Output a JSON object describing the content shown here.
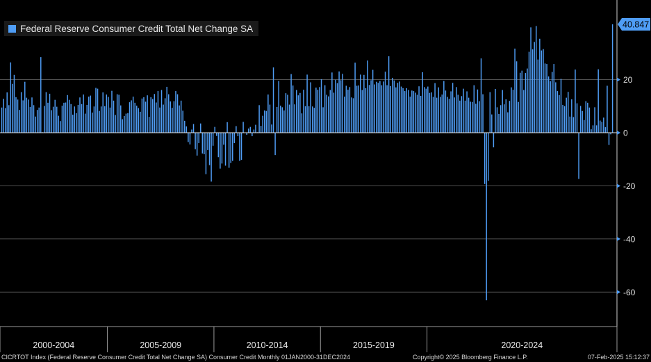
{
  "legend": {
    "label": "Federal Reserve Consumer Credit Total Net Change SA"
  },
  "footer": {
    "left": "CICRTOT Index (Federal Reserve Consumer Credit Total Net Change SA) Consumer Credit  Monthly 01JAN2000-31DEC2024",
    "middle": "Copyright© 2025 Bloomberg Finance L.P.",
    "right": "07-Feb-2025 15:12:37"
  },
  "colors": {
    "bar": "#4f9df5",
    "background": "#000000",
    "grid": "#6b6b6b",
    "last_label_bg": "#4f9df5"
  },
  "chart_data": {
    "type": "bar",
    "title": "Federal Reserve Consumer Credit Total Net Change SA",
    "ylim": [
      -73,
      50
    ],
    "yticks": [
      20,
      0,
      -20,
      -40,
      -60
    ],
    "grid": true,
    "legend_position": "top-left",
    "last_value_label": "40.847",
    "x_labels": [
      "2000-2004",
      "2005-2009",
      "2010-2014",
      "2015-2019",
      "2020-2024"
    ],
    "x_start": "2000-01",
    "frequency": "monthly",
    "values": [
      9.5,
      12.8,
      9.3,
      15.2,
      10.4,
      26.5,
      18.4,
      21.8,
      13.4,
      12.5,
      8.6,
      15.3,
      12.2,
      19.2,
      13.2,
      12.5,
      9.7,
      13.3,
      10.4,
      6.1,
      8.6,
      9.5,
      28.5,
      0.2,
      10.1,
      15.3,
      11.3,
      14.7,
      8.5,
      9.8,
      12.4,
      9.8,
      6.4,
      4.4,
      10.2,
      11.3,
      11.4,
      14.2,
      12.4,
      10.8,
      6.8,
      9.9,
      7.4,
      10.5,
      13.3,
      10.8,
      14.4,
      7.2,
      10.5,
      13.6,
      14.0,
      7.6,
      9.9,
      16.9,
      16.6,
      8.2,
      9.9,
      15.2,
      10.0,
      14.4,
      13.5,
      9.5,
      15.8,
      12.1,
      6.7,
      14.5,
      14.3,
      10.3,
      5.1,
      6.3,
      7.2,
      7.4,
      11.5,
      12.2,
      13.6,
      11.3,
      10.2,
      9.3,
      7.9,
      12.9,
      13.4,
      11.7,
      14.1,
      6.0,
      13.4,
      12.7,
      14.6,
      11.4,
      15.7,
      9.5,
      16.1,
      10.6,
      13.0,
      17.3,
      14.5,
      11.8,
      9.4,
      11.9,
      15.7,
      14.5,
      10.3,
      12.1,
      8.3,
      4.5,
      2.4,
      -3.5,
      -4.4,
      1.2,
      3.3,
      -6.2,
      -8.6,
      -3.9,
      3.5,
      -7.8,
      -8.1,
      -15.6,
      -6.5,
      -12.2,
      -18.4,
      -4.9,
      2.2,
      -1.2,
      -9.2,
      -13.5,
      -11.6,
      -4.5,
      -12.4,
      4.0,
      -13.2,
      -11.4,
      -10.6,
      -3.9,
      2.5,
      -1.3,
      -10.6,
      -10.2,
      4.1,
      0.1,
      -0.8,
      1.6,
      2.2,
      -1.3,
      1.2,
      3.0,
      0.2,
      10.4,
      2.6,
      6.4,
      8.4,
      8.2,
      14.4,
      10.6,
      3.1,
      24.6,
      -8.4,
      9.7,
      19.5,
      10.2,
      9.6,
      8.4,
      14.9,
      14.3,
      10.6,
      22.1,
      17.8,
      10.7,
      16.1,
      14.1,
      15.0,
      7.3,
      16.2,
      10.0,
      21.9,
      10.0,
      19.0,
      9.9,
      9.4,
      17.0,
      16.2,
      17.2,
      20.2,
      9.6,
      17.9,
      14.3,
      13.7,
      16.1,
      22.7,
      15.1,
      20.0,
      18.7,
      23.1,
      19.8,
      22.2,
      13.6,
      17.7,
      16.2,
      17.2,
      13.3,
      13.0,
      26.4,
      17.7,
      17.8,
      21.9,
      16.1,
      21.8,
      16.8,
      27.2,
      18.0,
      19.8,
      23.7,
      18.2,
      19.2,
      18.8,
      19.5,
      17.9,
      19.3,
      23.0,
      17.9,
      28.8,
      17.6,
      20.7,
      19.7,
      17.1,
      18.8,
      19.3,
      17.4,
      16.8,
      15.7,
      16.8,
      16.1,
      13.6,
      15.9,
      15.7,
      15.1,
      14.3,
      17.5,
      13.9,
      22.8,
      17.2,
      16.6,
      17.4,
      15.0,
      15.2,
      13.5,
      18.7,
      13.2,
      17.1,
      13.5,
      14.4,
      19.5,
      15.9,
      13.5,
      12.8,
      15.6,
      18.8,
      13.3,
      17.2,
      14.3,
      12.1,
      13.8,
      16.6,
      12.1,
      15.6,
      13.2,
      11.7,
      11.6,
      17.9,
      10.9,
      16.3,
      11.9,
      28.0,
      14.5,
      -19.3,
      -63.1,
      -18.1,
      15.3,
      6.9,
      -5.5,
      16.5,
      9.6,
      7.1,
      10.4,
      16.1,
      10.7,
      12.6,
      7.7,
      12.0,
      17.1,
      16.2,
      31.7,
      26.9,
      11.6,
      22.6,
      23.4,
      16.1,
      22.5,
      24.2,
      30.5,
      39.7,
      31.4,
      34.2,
      40.2,
      27.6,
      35.4,
      31.0,
      31.5,
      26.1,
      25.9,
      21.2,
      19.4,
      22.9,
      25.9,
      19.0,
      15.7,
      14.2,
      20.3,
      10.5,
      10.0,
      13.2,
      15.4,
      6.1,
      12.6,
      5.9,
      23.8,
      11.1,
      -17.4,
      10.1,
      8.2,
      4.8,
      11.9,
      11.3,
      9.5,
      1.3,
      2.8,
      9.6,
      2.8,
      23.9,
      4.6,
      4.1,
      5.7,
      2.1,
      17.7,
      -4.6,
      -0.6,
      40.847
    ]
  }
}
